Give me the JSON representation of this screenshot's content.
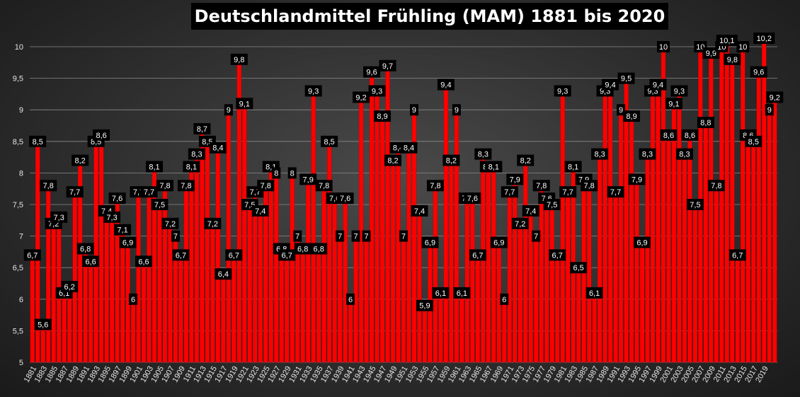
{
  "colors": {
    "bar": "#ff0000",
    "bar_edge": "#b00000",
    "grid": "#8a8a8a",
    "label_bg": "#000000",
    "label_text": "#ffffff"
  },
  "chart_data": {
    "type": "bar",
    "title": "Deutschlandmittel Frühling (MAM) 1881 bis 2020",
    "xlabel": "",
    "ylabel": "",
    "ylim": [
      5,
      10
    ],
    "yticks": [
      "5",
      "5,5",
      "6",
      "6,5",
      "7",
      "7,5",
      "8",
      "8,5",
      "9",
      "9,5",
      "10"
    ],
    "grid": true,
    "legend": "none",
    "start_year": 1881,
    "xtick_labels": [
      "1881",
      "1883",
      "1885",
      "1887",
      "1889",
      "1891",
      "1893",
      "1895",
      "1897",
      "1899",
      "1901",
      "1903",
      "1905",
      "1907",
      "1909",
      "1911",
      "1913",
      "1915",
      "1917",
      "1919",
      "1921",
      "1923",
      "1925",
      "1927",
      "1929",
      "1931",
      "1933",
      "1935",
      "1937",
      "1939",
      "1941",
      "1943",
      "1945",
      "1947",
      "1949",
      "1951",
      "1953",
      "1955",
      "1957",
      "1959",
      "1961",
      "1963",
      "1965",
      "1967",
      "1969",
      "1971",
      "1973",
      "1975",
      "1977",
      "1979",
      "1981",
      "1983",
      "1985",
      "1987",
      "1989",
      "1991",
      "1993",
      "1995",
      "1997",
      "1999",
      "2001",
      "2003",
      "2005",
      "2007",
      "2009",
      "2011",
      "2013",
      "2015",
      "2017",
      "2019"
    ],
    "values": [
      6.7,
      8.5,
      5.6,
      7.8,
      7.2,
      7.3,
      6.1,
      6.2,
      7.7,
      8.2,
      6.8,
      6.6,
      8.5,
      8.6,
      7.4,
      7.3,
      7.6,
      7.1,
      6.9,
      6,
      7.7,
      6.6,
      7.7,
      8.1,
      7.5,
      7.8,
      7.2,
      7,
      6.7,
      7.8,
      8.1,
      8.3,
      8.7,
      8.5,
      7.2,
      8.4,
      6.4,
      9,
      6.7,
      9.8,
      9.1,
      7.5,
      7.7,
      7.4,
      7.8,
      8.1,
      8,
      6.8,
      6.7,
      8,
      7,
      6.8,
      7.9,
      9.3,
      6.8,
      7.8,
      8.5,
      7.6,
      7,
      7.6,
      6,
      7,
      9.2,
      7,
      9.6,
      9.3,
      8.9,
      9.7,
      8.2,
      8.4,
      7,
      8.4,
      9,
      7.4,
      5.9,
      6.9,
      7.8,
      6.1,
      9.4,
      8.2,
      9,
      6.1,
      7.6,
      7.6,
      6.7,
      8.3,
      8.1,
      8.1,
      6.9,
      6,
      7.7,
      7.9,
      7.2,
      8.2,
      7.4,
      7,
      7.8,
      7.6,
      7.5,
      6.7,
      9.3,
      7.7,
      8.1,
      6.5,
      7.9,
      7.8,
      6.1,
      8.3,
      9.3,
      9.4,
      7.7,
      9,
      9.5,
      8.9,
      7.9,
      6.9,
      8.3,
      9.3,
      9.4,
      10,
      8.6,
      9.1,
      9.3,
      8.3,
      8.6,
      7.5,
      10,
      8.8,
      9.9,
      7.8,
      10,
      10.1,
      9.8,
      6.7,
      10,
      8.6,
      8.5,
      9.6,
      10.2,
      9,
      9.2
    ],
    "labels": [
      "6,7",
      "8,5",
      "5,6",
      "7,8",
      "7,2",
      "7,3",
      "6,1",
      "6,2",
      "7,7",
      "8,2",
      "6,8",
      "6,6",
      "8,5",
      "8,6",
      "7,4",
      "7,3",
      "7,6",
      "7,1",
      "6,9",
      "6",
      "7,7",
      "6,6",
      "7,7",
      "8,1",
      "7,5",
      "7,8",
      "7,2",
      "7",
      "6,7",
      "7,8",
      "8,1",
      "8,3",
      "8,7",
      "8,5",
      "7,2",
      "8,4",
      "6,4",
      "9",
      "6,7",
      "9,8",
      "9,1",
      "7,5",
      "7,7",
      "7,4",
      "7,8",
      "8,1",
      "8",
      "6,8",
      "6,7",
      "8",
      "7",
      "6,8",
      "7,9",
      "9,3",
      "6,8",
      "7,8",
      "8,5",
      "7,6",
      "7",
      "7,6",
      "6",
      "7",
      "9,2",
      "7",
      "9,6",
      "9,3",
      "8,9",
      "9,7",
      "8,2",
      "8,4",
      "7",
      "8,4",
      "9",
      "7,4",
      "5,9",
      "6,9",
      "7,8",
      "6,1",
      "9,4",
      "8,2",
      "9",
      "6,1",
      "7,6",
      "7,6",
      "6,7",
      "8,3",
      "8,1",
      "8,1",
      "6,9",
      "6",
      "7,7",
      "7,9",
      "7,2",
      "8,2",
      "7,4",
      "7",
      "7,8",
      "7,6",
      "7,5",
      "6,7",
      "9,3",
      "7,7",
      "8,1",
      "6,5",
      "7,9",
      "7,8",
      "6,1",
      "8,3",
      "9,3",
      "9,4",
      "7,7",
      "9",
      "9,5",
      "8,9",
      "7,9",
      "6,9",
      "8,3",
      "9,3",
      "9,4",
      "10",
      "8,6",
      "9,1",
      "9,3",
      "8,3",
      "8,6",
      "7,5",
      "10",
      "8,8",
      "9,9",
      "7,8",
      "10",
      "10,1",
      "9,8",
      "6,7",
      "10",
      "8,6",
      "8,5",
      "9,6",
      "10,2",
      "9",
      "9,2"
    ]
  }
}
